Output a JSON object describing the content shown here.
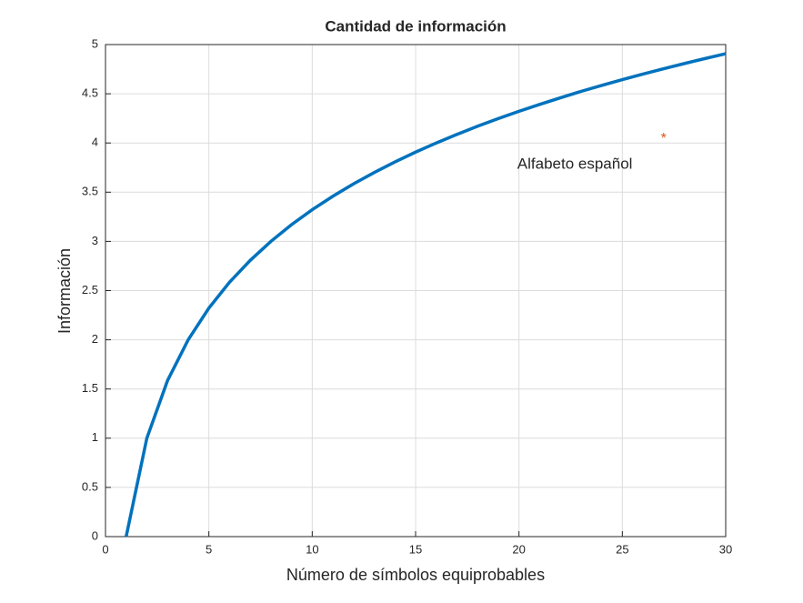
{
  "chart_data": {
    "type": "line",
    "title": "Cantidad de información",
    "xlabel": "Número de símbolos equiprobables",
    "ylabel": "Información",
    "x": [
      1,
      2,
      3,
      4,
      5,
      6,
      7,
      8,
      9,
      10,
      11,
      12,
      13,
      14,
      15,
      16,
      17,
      18,
      19,
      20,
      21,
      22,
      23,
      24,
      25,
      26,
      27,
      28,
      29,
      30
    ],
    "values": [
      0,
      1,
      1.585,
      2,
      2.322,
      2.585,
      2.807,
      3,
      3.17,
      3.322,
      3.459,
      3.585,
      3.7,
      3.807,
      3.907,
      4,
      4.087,
      4.17,
      4.248,
      4.322,
      4.392,
      4.459,
      4.524,
      4.585,
      4.644,
      4.7,
      4.755,
      4.807,
      4.858,
      4.907
    ],
    "color": "#0072bd",
    "annotations": [
      {
        "x": 27,
        "y": 4.05,
        "text": "Alfabeto español",
        "color": "#d95319"
      }
    ],
    "xlim": [
      0,
      30
    ],
    "xticks": [
      0,
      5,
      10,
      15,
      20,
      25,
      30
    ],
    "ylim": [
      0,
      5
    ],
    "yticks": [
      0,
      0.5,
      1,
      1.5,
      2,
      2.5,
      3,
      3.5,
      4,
      4.5,
      5
    ],
    "grid": true
  }
}
